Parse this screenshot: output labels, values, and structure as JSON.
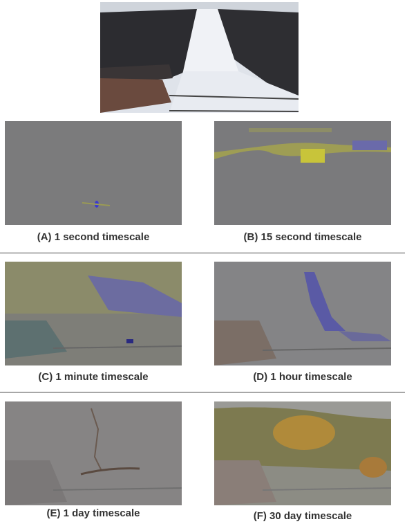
{
  "panels": [
    {
      "caption": "(A) 1 second timescale"
    },
    {
      "caption": "(B) 15 second timescale"
    },
    {
      "caption": "(C) 1 minute timescale"
    },
    {
      "caption": "(D) 1 hour timescale"
    },
    {
      "caption": "(E) 1 day timescale"
    },
    {
      "caption": "(F) 30 day timescale"
    }
  ]
}
